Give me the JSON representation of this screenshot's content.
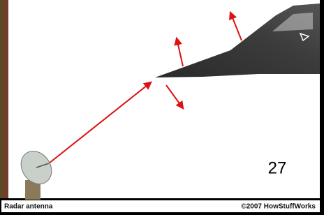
{
  "caption": {
    "left": "Radar antenna",
    "right": "©2007 HowStuffWorks"
  },
  "page_number": "27"
}
